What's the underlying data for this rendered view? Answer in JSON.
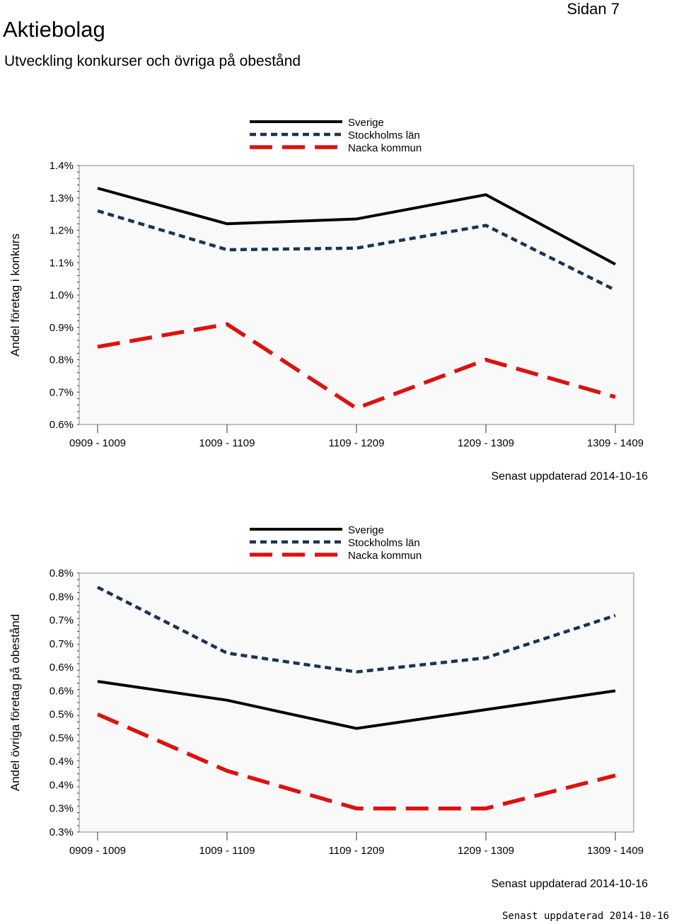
{
  "header": {
    "title": "Aktiebolag",
    "subtitle": "Utveckling konkurser och övriga på obestånd",
    "page_label": "Sidan 7"
  },
  "footer": {
    "stamp": "Senast uppdaterad 2014-10-16"
  },
  "colors": {
    "sverige": "#000000",
    "stockholm": "#1a3354",
    "nacka": "#dd1111",
    "plot_bg": "#f9f9f9"
  },
  "chart_data": [
    {
      "type": "line",
      "ylabel": "Andel företag i konkurs",
      "categories": [
        "0909 - 1009",
        "1009 - 1109",
        "1109 - 1209",
        "1209 - 1309",
        "1309 - 1409"
      ],
      "yticks": [
        "1.4%",
        "1.3%",
        "1.2%",
        "1.1%",
        "1.0%",
        "0.9%",
        "0.8%",
        "0.7%",
        "0.6%"
      ],
      "ylim": [
        0.6,
        1.4
      ],
      "series": [
        {
          "name": "Sverige",
          "values": [
            1.33,
            1.22,
            1.235,
            1.31,
            1.095
          ]
        },
        {
          "name": "Stockholms län",
          "values": [
            1.26,
            1.14,
            1.145,
            1.215,
            1.015
          ]
        },
        {
          "name": "Nacka kommun",
          "values": [
            0.84,
            0.91,
            0.65,
            0.8,
            0.685
          ]
        }
      ],
      "note": "Senast uppdaterad 2014-10-16"
    },
    {
      "type": "line",
      "ylabel": "Andel övriga företag på obestånd",
      "categories": [
        "0909 - 1009",
        "1009 - 1109",
        "1109 - 1209",
        "1209 - 1309",
        "1309 - 1409"
      ],
      "yticks": [
        "0.8%",
        "0.8%",
        "0.7%",
        "0.7%",
        "0.6%",
        "0.6%",
        "0.5%",
        "0.5%",
        "0.4%",
        "0.4%",
        "0.3%",
        "0.3%"
      ],
      "ylim": [
        0.25,
        0.8
      ],
      "series": [
        {
          "name": "Sverige",
          "values": [
            0.57,
            0.53,
            0.47,
            0.51,
            0.55
          ]
        },
        {
          "name": "Stockholms län",
          "values": [
            0.77,
            0.63,
            0.59,
            0.62,
            0.71
          ]
        },
        {
          "name": "Nacka kommun",
          "values": [
            0.5,
            0.38,
            0.3,
            0.3,
            0.37
          ]
        }
      ],
      "note": "Senast uppdaterad 2014-10-16"
    }
  ]
}
